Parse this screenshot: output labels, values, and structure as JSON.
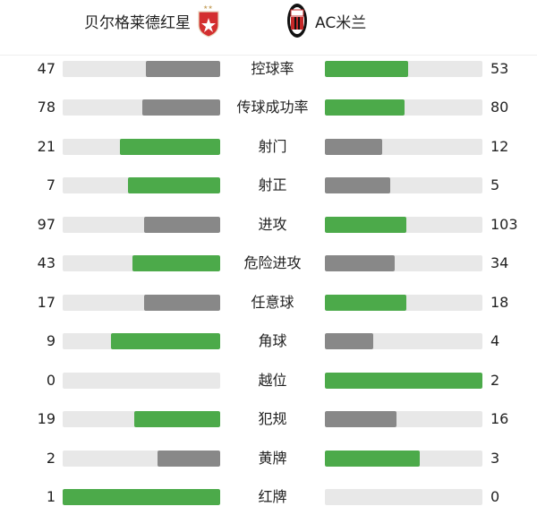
{
  "home": {
    "name": "贝尔格莱德红星",
    "logo": "red-star-belgrade-crest"
  },
  "away": {
    "name": "AC米兰",
    "logo": "ac-milan-crest"
  },
  "colors": {
    "win": "#4caa4a",
    "lose": "#888888",
    "track": "#e8e8e8"
  },
  "stats": [
    {
      "label": "控球率",
      "home": 47,
      "away": 53
    },
    {
      "label": "传球成功率",
      "home": 78,
      "away": 80
    },
    {
      "label": "射门",
      "home": 21,
      "away": 12
    },
    {
      "label": "射正",
      "home": 7,
      "away": 5
    },
    {
      "label": "进攻",
      "home": 97,
      "away": 103
    },
    {
      "label": "危险进攻",
      "home": 43,
      "away": 34
    },
    {
      "label": "任意球",
      "home": 17,
      "away": 18
    },
    {
      "label": "角球",
      "home": 9,
      "away": 4
    },
    {
      "label": "越位",
      "home": 0,
      "away": 2
    },
    {
      "label": "犯规",
      "home": 19,
      "away": 16
    },
    {
      "label": "黄牌",
      "home": 2,
      "away": 3
    },
    {
      "label": "红牌",
      "home": 1,
      "away": 0
    }
  ]
}
